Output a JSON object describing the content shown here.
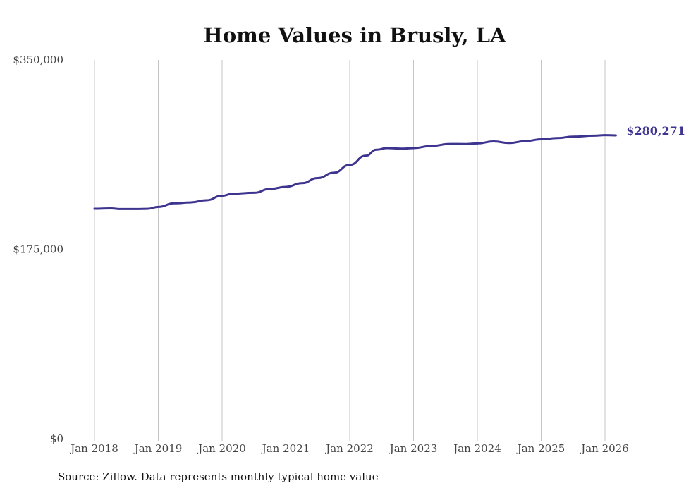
{
  "chart_data": {
    "type": "line",
    "title": "Home Values in Brusly, LA",
    "xlabel": "",
    "ylabel": "",
    "ylim": [
      0,
      350000
    ],
    "y_ticks": [
      {
        "value": 0,
        "label": "$0"
      },
      {
        "value": 175000,
        "label": "$175,000"
      },
      {
        "value": 350000,
        "label": "$350,000"
      }
    ],
    "x_range": [
      2018.0,
      2026.17
    ],
    "x_ticks": [
      {
        "value": 2018,
        "label": "Jan 2018"
      },
      {
        "value": 2019,
        "label": "Jan 2019"
      },
      {
        "value": 2020,
        "label": "Jan 2020"
      },
      {
        "value": 2021,
        "label": "Jan 2021"
      },
      {
        "value": 2022,
        "label": "Jan 2022"
      },
      {
        "value": 2023,
        "label": "Jan 2023"
      },
      {
        "value": 2024,
        "label": "Jan 2024"
      },
      {
        "value": 2025,
        "label": "Jan 2025"
      },
      {
        "value": 2026,
        "label": "Jan 2026"
      }
    ],
    "grid": "vertical",
    "series": [
      {
        "name": "Typical home value",
        "color": "#3d3490",
        "end_label": "$280,271",
        "x": [
          2018.0,
          2018.25,
          2018.42,
          2018.67,
          2018.83,
          2019.0,
          2019.25,
          2019.5,
          2019.75,
          2020.0,
          2020.17,
          2020.5,
          2020.75,
          2021.0,
          2021.25,
          2021.5,
          2021.75,
          2022.0,
          2022.25,
          2022.42,
          2022.58,
          2022.83,
          2023.0,
          2023.25,
          2023.58,
          2023.83,
          2024.0,
          2024.25,
          2024.5,
          2024.75,
          2025.0,
          2025.25,
          2025.5,
          2025.83,
          2026.0,
          2026.17
        ],
        "values": [
          212500,
          212800,
          212200,
          212200,
          212400,
          214200,
          217500,
          218300,
          220300,
          224500,
          226400,
          227200,
          230700,
          232700,
          236100,
          240800,
          245800,
          253000,
          261500,
          267000,
          268500,
          268000,
          268500,
          270300,
          272400,
          272300,
          272800,
          274700,
          273200,
          275000,
          276700,
          277800,
          279100,
          280000,
          280500,
          280271
        ]
      }
    ]
  },
  "footer": {
    "source": "Source: Zillow. Data represents monthly typical home value"
  }
}
